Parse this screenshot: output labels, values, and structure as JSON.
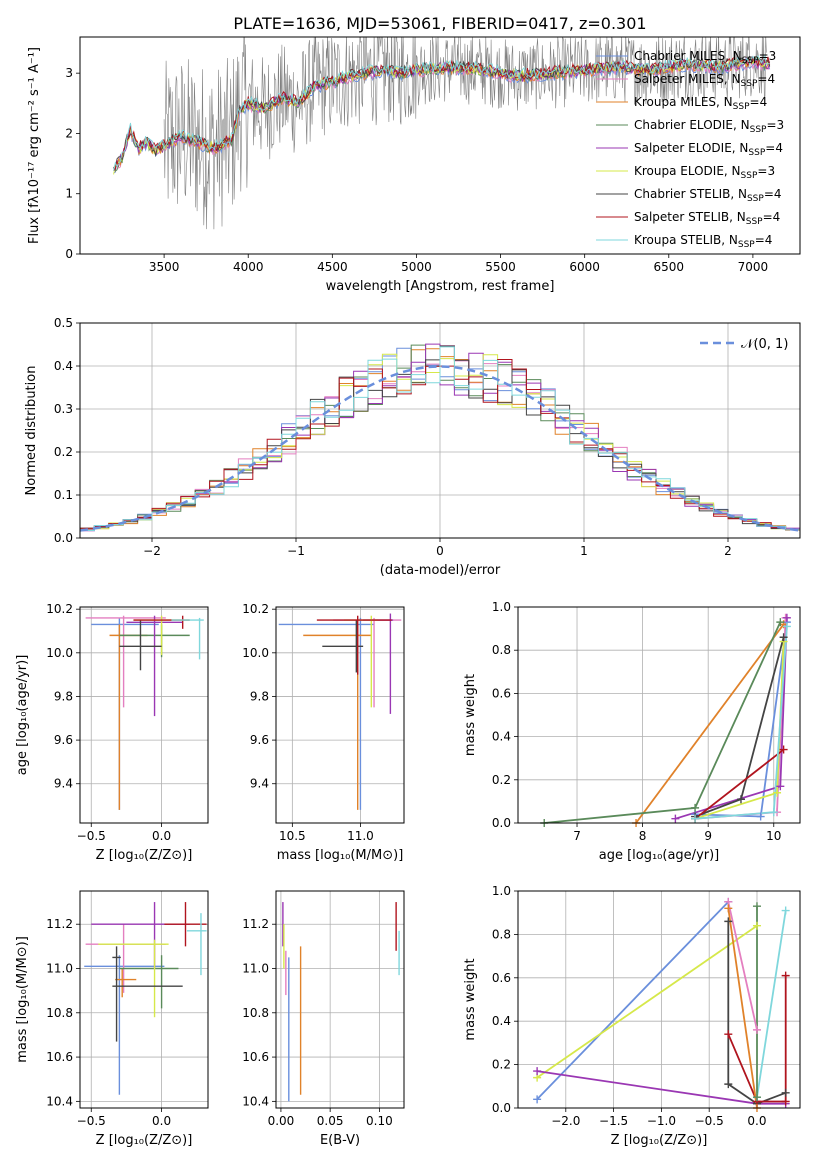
{
  "title": "PLATE=1636, MJD=53061, FIBERID=0417, z=0.301",
  "colors": {
    "chabrier_miles": "#6a8fdc",
    "salpeter_miles": "#e47fc0",
    "kroupa_miles": "#e0822a",
    "chabrier_elodie": "#5a8a5a",
    "salpeter_elodie": "#9a37b3",
    "kroupa_elodie": "#d6e84a",
    "chabrier_stelib": "#444444",
    "salpeter_stelib": "#b0141e",
    "kroupa_stelib": "#7fd7dc",
    "data": "#808080"
  },
  "chart_data": [
    {
      "type": "line",
      "id": "spectrum",
      "xlabel": "wavelength [Angstrom, rest frame]",
      "ylabel": "Flux [fλ10⁻¹⁷ erg cm⁻² s⁻¹ A⁻¹]",
      "xlim": [
        3000,
        7280
      ],
      "ylim": [
        0,
        3.6
      ],
      "xticks": [
        "3500",
        "4000",
        "4500",
        "5000",
        "5500",
        "6000",
        "6500",
        "7000"
      ],
      "yticks": [
        "0",
        "1",
        "2",
        "3"
      ],
      "legend_position": "top-right",
      "legend": [
        {
          "label": "Chabrier MILES, N",
          "sub": "SSP",
          "suffix": "=3"
        },
        {
          "label": "Salpeter MILES, N",
          "sub": "SSP",
          "suffix": "=4"
        },
        {
          "label": "Kroupa MILES, N",
          "sub": "SSP",
          "suffix": "=4"
        },
        {
          "label": "Chabrier ELODIE, N",
          "sub": "SSP",
          "suffix": "=3"
        },
        {
          "label": "Salpeter ELODIE, N",
          "sub": "SSP",
          "suffix": "=4"
        },
        {
          "label": "Kroupa ELODIE, N",
          "sub": "SSP",
          "suffix": "=3"
        },
        {
          "label": "Chabrier STELIB, N",
          "sub": "SSP",
          "suffix": "=4"
        },
        {
          "label": "Salpeter STELIB, N",
          "sub": "SSP",
          "suffix": "=4"
        },
        {
          "label": "Kroupa STELIB, N",
          "sub": "SSP",
          "suffix": "=4"
        }
      ],
      "model_continuum": {
        "x": [
          3200,
          3250,
          3300,
          3350,
          3400,
          3450,
          3500,
          3600,
          3700,
          3800,
          3900,
          3950,
          4000,
          4100,
          4200,
          4300,
          4400,
          4500,
          4600,
          4700,
          4800,
          4900,
          5000,
          5200,
          5400,
          5600,
          5800,
          6000,
          6200,
          6400,
          6600,
          6800,
          7000,
          7100
        ],
        "y": [
          1.4,
          1.6,
          2.05,
          1.75,
          1.85,
          1.7,
          1.8,
          1.95,
          1.85,
          1.75,
          1.9,
          2.4,
          2.5,
          2.4,
          2.6,
          2.5,
          2.8,
          2.85,
          2.95,
          3.0,
          3.05,
          3.0,
          3.05,
          3.1,
          3.05,
          2.95,
          3.0,
          3.05,
          3.1,
          3.05,
          3.15,
          3.1,
          3.2,
          3.15
        ]
      }
    },
    {
      "type": "step",
      "id": "residuals",
      "xlabel": "(data-model)/error",
      "ylabel": "Normed distribution",
      "xlim": [
        -2.5,
        2.5
      ],
      "ylim": [
        0,
        0.5
      ],
      "xticks": [
        "−2",
        "−1",
        "0",
        "1",
        "2"
      ],
      "yticks": [
        "0.0",
        "0.1",
        "0.2",
        "0.3",
        "0.4",
        "0.5"
      ],
      "legend_label": "𝒩(0, 1)",
      "bin_edges_start": -2.5,
      "bin_width": 0.1
    },
    {
      "type": "errorbar",
      "id": "age_vs_Z",
      "xlabel": "Z [log₁₀(Z/Z⊙)]",
      "ylabel": "age  [log₁₀(age/yr)]",
      "xlim": [
        -0.58,
        0.33
      ],
      "ylim": [
        9.22,
        10.21
      ],
      "xticks": [
        "−0.5",
        "0.0"
      ],
      "yticks": [
        "9.4",
        "9.6",
        "9.8",
        "10.0",
        "10.2"
      ],
      "points": [
        {
          "x": -0.3,
          "y": 10.13,
          "xerr": [
            0.2,
            0.28
          ],
          "yerr": [
            0.85,
            0.03
          ],
          "c": "chabrier_miles"
        },
        {
          "x": -0.27,
          "y": 10.16,
          "xerr": [
            0.27,
            0.3
          ],
          "yerr": [
            0.41,
            0.01
          ],
          "c": "salpeter_miles"
        },
        {
          "x": -0.3,
          "y": 10.08,
          "xerr": [
            0.07,
            0.2
          ],
          "yerr": [
            0.8,
            0.05
          ],
          "c": "kroupa_miles"
        },
        {
          "x": 0.0,
          "y": 10.08,
          "xerr": [
            0.3,
            0.2
          ],
          "yerr": [
            0.1,
            0.05
          ],
          "c": "chabrier_elodie"
        },
        {
          "x": -0.05,
          "y": 10.14,
          "xerr": [
            0.2,
            0.2
          ],
          "yerr": [
            0.43,
            0.03
          ],
          "c": "salpeter_elodie"
        },
        {
          "x": 0.0,
          "y": 10.15,
          "xerr": [
            0.2,
            0.2
          ],
          "yerr": [
            0.16,
            0.02
          ],
          "c": "kroupa_elodie"
        },
        {
          "x": -0.15,
          "y": 10.03,
          "xerr": [
            0.15,
            0.15
          ],
          "yerr": [
            0.11,
            0.12
          ],
          "c": "chabrier_stelib"
        },
        {
          "x": 0.15,
          "y": 10.15,
          "xerr": [
            0.35,
            0.05
          ],
          "yerr": [
            0.04,
            0.02
          ],
          "c": "salpeter_stelib"
        },
        {
          "x": 0.27,
          "y": 10.15,
          "xerr": [
            0.2,
            0.03
          ],
          "yerr": [
            0.18,
            0.01
          ],
          "c": "kroupa_stelib"
        }
      ]
    },
    {
      "type": "errorbar",
      "id": "age_vs_mass",
      "xlabel": "mass [log₁₀(M/M⊙)]",
      "ylabel": "",
      "xlim": [
        10.38,
        11.32
      ],
      "ylim": [
        9.22,
        10.21
      ],
      "xticks": [
        "10.5",
        "11.0"
      ],
      "yticks": [
        "9.4",
        "9.6",
        "9.8",
        "10.0",
        "10.2"
      ],
      "points": [
        {
          "x": 11.0,
          "y": 10.13,
          "xerr": [
            0.6,
            0.1
          ],
          "yerr": [
            0.85,
            0.03
          ],
          "c": "chabrier_miles"
        },
        {
          "x": 11.1,
          "y": 10.15,
          "xerr": [
            0.3,
            0.2
          ],
          "yerr": [
            0.4,
            0.01
          ],
          "c": "salpeter_miles"
        },
        {
          "x": 10.98,
          "y": 10.08,
          "xerr": [
            0.4,
            0.1
          ],
          "yerr": [
            0.8,
            0.05
          ],
          "c": "kroupa_miles"
        },
        {
          "x": 11.22,
          "y": 10.15,
          "xerr": [
            0.2,
            0.02
          ],
          "yerr": [
            0.43,
            0.03
          ],
          "c": "salpeter_elodie"
        },
        {
          "x": 11.08,
          "y": 10.15,
          "xerr": [
            0.2,
            0.05
          ],
          "yerr": [
            0.4,
            0.02
          ],
          "c": "kroupa_elodie"
        },
        {
          "x": 10.97,
          "y": 10.03,
          "xerr": [
            0.25,
            0.05
          ],
          "yerr": [
            0.12,
            0.12
          ],
          "c": "chabrier_stelib"
        },
        {
          "x": 10.98,
          "y": 10.15,
          "xerr": [
            0.3,
            0.25
          ],
          "yerr": [
            0.25,
            0.02
          ],
          "c": "salpeter_stelib"
        }
      ]
    },
    {
      "type": "line",
      "id": "weight_vs_age",
      "xlabel": "age  [log₁₀(age/yr)]",
      "ylabel": "mass weight",
      "xlim": [
        6.1,
        10.4
      ],
      "ylim": [
        0,
        1.0
      ],
      "xticks": [
        "7",
        "8",
        "9",
        "10"
      ],
      "yticks": [
        "0.0",
        "0.2",
        "0.4",
        "0.6",
        "0.8",
        "1.0"
      ],
      "series": [
        {
          "c": "chabrier_miles",
          "x": [
            8.8,
            9.8,
            10.2
          ],
          "y": [
            0.04,
            0.03,
            0.93
          ]
        },
        {
          "c": "salpeter_miles",
          "x": [
            8.8,
            10.05,
            10.18
          ],
          "y": [
            0.02,
            0.05,
            0.95
          ]
        },
        {
          "c": "kroupa_miles",
          "x": [
            7.9,
            10.15
          ],
          "y": [
            0.0,
            0.92
          ]
        },
        {
          "c": "chabrier_elodie",
          "x": [
            6.5,
            8.8,
            10.1
          ],
          "y": [
            0.0,
            0.07,
            0.93
          ]
        },
        {
          "c": "salpeter_elodie",
          "x": [
            8.5,
            10.1,
            10.2
          ],
          "y": [
            0.02,
            0.17,
            0.95
          ]
        },
        {
          "c": "kroupa_elodie",
          "x": [
            8.8,
            10.05,
            10.15
          ],
          "y": [
            0.02,
            0.14,
            0.84
          ]
        },
        {
          "c": "chabrier_stelib",
          "x": [
            8.8,
            9.5,
            10.15
          ],
          "y": [
            0.03,
            0.11,
            0.86
          ]
        },
        {
          "c": "salpeter_stelib",
          "x": [
            8.8,
            10.15
          ],
          "y": [
            0.02,
            0.34
          ]
        },
        {
          "c": "kroupa_stelib",
          "x": [
            8.8,
            10.0,
            10.2
          ],
          "y": [
            0.02,
            0.05,
            0.91
          ]
        }
      ]
    },
    {
      "type": "errorbar",
      "id": "mass_vs_Z",
      "xlabel": "Z [log₁₀(Z/Z⊙)]",
      "ylabel": "mass [log₁₀(M/M⊙)]",
      "xlim": [
        -0.58,
        0.33
      ],
      "ylim": [
        10.37,
        11.35
      ],
      "xticks": [
        "−0.5",
        "0.0"
      ],
      "yticks": [
        "10.4",
        "10.6",
        "10.8",
        "11.0",
        "11.2"
      ],
      "points": [
        {
          "x": -0.3,
          "y": 11.01,
          "xerr": [
            0.25,
            0.32
          ],
          "yerr": [
            0.58,
            0.05
          ],
          "c": "chabrier_miles"
        },
        {
          "x": -0.27,
          "y": 11.11,
          "xerr": [
            0.27,
            0.3
          ],
          "yerr": [
            0.22,
            0.09
          ],
          "c": "salpeter_miles"
        },
        {
          "x": -0.28,
          "y": 10.95,
          "xerr": [
            0.05,
            0.1
          ],
          "yerr": [
            0.08,
            0.05
          ],
          "c": "kroupa_miles"
        },
        {
          "x": 0.0,
          "y": 11.0,
          "xerr": [
            0.3,
            0.12
          ],
          "yerr": [
            0.18,
            0.06
          ],
          "c": "chabrier_elodie"
        },
        {
          "x": -0.05,
          "y": 11.2,
          "xerr": [
            0.45,
            0.25
          ],
          "yerr": [
            0.2,
            0.1
          ],
          "c": "salpeter_elodie"
        },
        {
          "x": -0.05,
          "y": 11.11,
          "xerr": [
            0.4,
            0.1
          ],
          "yerr": [
            0.33,
            0.02
          ],
          "c": "kroupa_elodie"
        },
        {
          "x": -0.32,
          "y": 11.05,
          "xerr": [
            0.03,
            0.03
          ],
          "yerr": [
            0.38,
            0.05
          ],
          "c": "chabrier_stelib"
        },
        {
          "x": 0.17,
          "y": 11.2,
          "xerr": [
            0.15,
            0.15
          ],
          "yerr": [
            0.1,
            0.1
          ],
          "c": "salpeter_stelib"
        },
        {
          "x": 0.28,
          "y": 11.17,
          "xerr": [
            0.1,
            0.04
          ],
          "yerr": [
            0.2,
            0.08
          ],
          "c": "kroupa_stelib"
        },
        {
          "x": -0.1,
          "y": 10.92,
          "xerr": [
            0.25,
            0.25
          ],
          "yerr": [
            0.0,
            0.0
          ],
          "c": "chabrier_stelib"
        }
      ]
    },
    {
      "type": "errorbar",
      "id": "mass_vs_ebv",
      "xlabel": "E(B-V)",
      "ylabel": "",
      "xlim": [
        -0.005,
        0.125
      ],
      "ylim": [
        10.37,
        11.35
      ],
      "xticks": [
        "0.00",
        "0.05",
        "0.10"
      ],
      "yticks": [
        "10.4",
        "10.6",
        "10.8",
        "11.0",
        "11.2"
      ],
      "points": [
        {
          "x": 0.002,
          "y": 11.2,
          "xerr": [
            0,
            0
          ],
          "yerr": [
            0.1,
            0.1
          ],
          "c": "salpeter_elodie"
        },
        {
          "x": 0.003,
          "y": 11.1,
          "xerr": [
            0,
            0
          ],
          "yerr": [
            0.1,
            0.1
          ],
          "c": "kroupa_elodie"
        },
        {
          "x": 0.005,
          "y": 10.98,
          "xerr": [
            0,
            0
          ],
          "yerr": [
            0.1,
            0.1
          ],
          "c": "salpeter_miles"
        },
        {
          "x": 0.008,
          "y": 10.7,
          "xerr": [
            0,
            0
          ],
          "yerr": [
            0.3,
            0.35
          ],
          "c": "chabrier_miles"
        },
        {
          "x": 0.02,
          "y": 10.77,
          "xerr": [
            0,
            0
          ],
          "yerr": [
            0.34,
            0.33
          ],
          "c": "kroupa_miles"
        },
        {
          "x": 0.117,
          "y": 11.18,
          "xerr": [
            0,
            0
          ],
          "yerr": [
            0.1,
            0.12
          ],
          "c": "salpeter_stelib"
        },
        {
          "x": 0.12,
          "y": 11.07,
          "xerr": [
            0,
            0
          ],
          "yerr": [
            0.1,
            0.1
          ],
          "c": "kroupa_stelib"
        }
      ]
    },
    {
      "type": "line",
      "id": "weight_vs_Z",
      "xlabel": "Z [log₁₀(Z/Z⊙)]",
      "ylabel": "mass weight",
      "xlim": [
        -2.5,
        0.45
      ],
      "ylim": [
        0,
        1.0
      ],
      "xticks": [
        "−2.0",
        "−1.5",
        "−1.0",
        "−0.5",
        "0.0"
      ],
      "yticks": [
        "0.0",
        "0.2",
        "0.4",
        "0.6",
        "0.8",
        "1.0"
      ],
      "series": [
        {
          "c": "chabrier_miles",
          "x": [
            -2.3,
            -0.3
          ],
          "y": [
            0.04,
            0.95
          ]
        },
        {
          "c": "kroupa_elodie",
          "x": [
            -2.3,
            0.0
          ],
          "y": [
            0.14,
            0.84
          ]
        },
        {
          "c": "salpeter_elodie",
          "x": [
            -2.3,
            0.0,
            0.3
          ],
          "y": [
            0.17,
            0.02,
            0.02
          ]
        },
        {
          "c": "chabrier_stelib",
          "x": [
            -0.3,
            -0.3,
            0.0,
            0.3
          ],
          "y": [
            0.86,
            0.11,
            0.02,
            0.07
          ]
        },
        {
          "c": "salpeter_stelib",
          "x": [
            -0.3,
            0.0,
            0.3,
            0.3
          ],
          "y": [
            0.34,
            0.03,
            0.03,
            0.61
          ]
        },
        {
          "c": "kroupa_stelib",
          "x": [
            0.0,
            0.3
          ],
          "y": [
            0.05,
            0.91
          ]
        },
        {
          "c": "chabrier_elodie",
          "x": [
            0.0,
            0.0
          ],
          "y": [
            0.05,
            0.93
          ]
        },
        {
          "c": "salpeter_miles",
          "x": [
            -0.3,
            0.0
          ],
          "y": [
            0.95,
            0.36
          ]
        },
        {
          "c": "kroupa_miles",
          "x": [
            -0.3,
            0.0
          ],
          "y": [
            0.92,
            0.0
          ]
        }
      ]
    }
  ]
}
